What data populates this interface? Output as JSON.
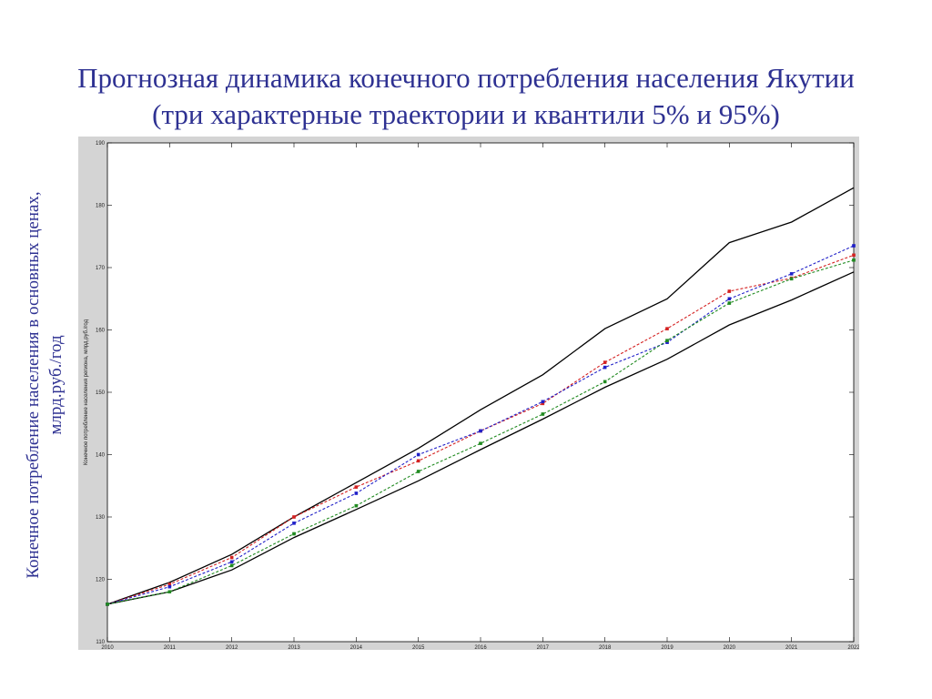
{
  "title": {
    "line1": "Прогнозная динамика конечного потребления населения Якутии",
    "line2": "(три характерные траектории и квантили 5% и 95%)"
  },
  "outer_ylabel": {
    "line1": "Конечное потребление населения в основных ценах,",
    "line2": "млрд.руб./год"
  },
  "chart_data": {
    "type": "line",
    "title": "",
    "xlabel": "",
    "ylabel": "Конечное потребление населения региона, млрд.руб./год",
    "x": [
      2010,
      2011,
      2012,
      2013,
      2014,
      2015,
      2016,
      2017,
      2018,
      2019,
      2020,
      2021,
      2022
    ],
    "xlim": [
      2010,
      2022
    ],
    "ylim": [
      110,
      190
    ],
    "yticks": [
      110,
      120,
      130,
      140,
      150,
      160,
      170,
      180,
      190
    ],
    "grid": false,
    "legend": "none",
    "series": [
      {
        "style": "solid",
        "marker": "none",
        "color": "#000000",
        "values": [
          116,
          119.5,
          124,
          130,
          135.5,
          141,
          147.2,
          152.8,
          160.2,
          165,
          174,
          177.3,
          182.8
        ]
      },
      {
        "style": "solid",
        "marker": "none",
        "color": "#000000",
        "values": [
          116,
          118,
          121.5,
          126.7,
          131.2,
          135.8,
          140.8,
          145.7,
          150.8,
          155.3,
          160.8,
          164.8,
          169.3
        ]
      },
      {
        "style": "dashed",
        "marker": "square",
        "color": "#d42020",
        "values": [
          116,
          119.2,
          123.5,
          130,
          134.8,
          139,
          143.8,
          148.2,
          154.8,
          160.2,
          166.2,
          168.3,
          172
        ]
      },
      {
        "style": "dashed",
        "marker": "square",
        "color": "#2020c8",
        "values": [
          116,
          118.8,
          122.8,
          129,
          133.8,
          140,
          143.8,
          148.5,
          154,
          158,
          165,
          169,
          173.5
        ]
      },
      {
        "style": "dashed",
        "marker": "square",
        "color": "#208a20",
        "values": [
          116,
          118,
          122.2,
          127.3,
          131.8,
          137.3,
          141.8,
          146.5,
          151.7,
          158.3,
          164.3,
          168.2,
          171.2
        ]
      }
    ]
  }
}
